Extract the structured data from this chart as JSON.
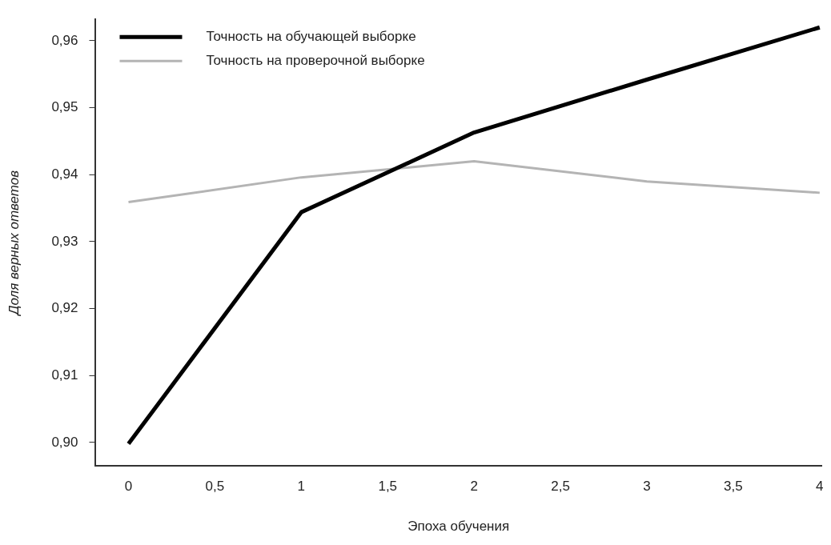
{
  "chart_data": {
    "type": "line",
    "xlabel": "Эпоха обучения",
    "ylabel": "Доля верных ответов",
    "x": [
      0,
      1,
      2,
      3,
      4
    ],
    "series": [
      {
        "name": "Точность на обучающей выборке",
        "color": "#000000",
        "values": [
          0.8998,
          0.9344,
          0.9463,
          0.9542,
          0.962
        ]
      },
      {
        "name": "Точность на проверочной выборке",
        "color": "#b4b4b4",
        "values": [
          0.9359,
          0.9396,
          0.942,
          0.939,
          0.9373
        ]
      }
    ],
    "xlim": [
      -0.19,
      4.01
    ],
    "ylim": [
      0.8965,
      0.9632
    ],
    "xticks": [
      0,
      {
        "value": 0.5,
        "label": "0,5"
      },
      1,
      {
        "value": 1.5,
        "label": "1,5"
      },
      2,
      {
        "value": 2.5,
        "label": "2,5"
      },
      3,
      {
        "value": 3.5,
        "label": "3,5"
      },
      4
    ],
    "yticks": [
      {
        "value": 0.9,
        "label": "0,90"
      },
      {
        "value": 0.91,
        "label": "0,91"
      },
      {
        "value": 0.92,
        "label": "0,92"
      },
      {
        "value": 0.93,
        "label": "0,93"
      },
      {
        "value": 0.94,
        "label": "0,94"
      },
      {
        "value": 0.95,
        "label": "0,95"
      },
      {
        "value": 0.96,
        "label": "0,96"
      }
    ],
    "grid": false,
    "legend": "top left",
    "marker": "none",
    "line_style": "solid"
  }
}
